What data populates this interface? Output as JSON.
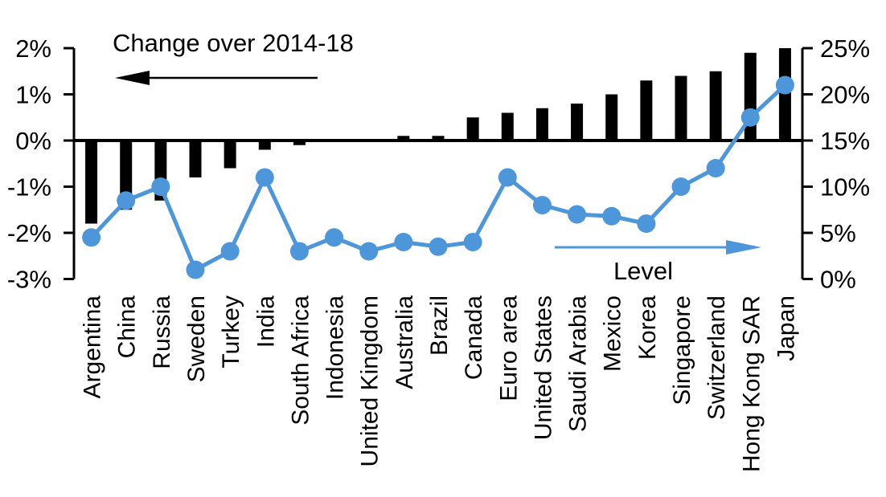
{
  "chart_data": {
    "type": "bar",
    "title": "Change over 2014-18",
    "categories": [
      "Argentina",
      "China",
      "Russia",
      "Sweden",
      "Turkey",
      "India",
      "South Africa",
      "Indonesia",
      "United Kingdom",
      "Australia",
      "Brazil",
      "Canada",
      "Euro area",
      "United States",
      "Saudi Arabia",
      "Mexico",
      "Korea",
      "Singapore",
      "Switzerland",
      "Hong Kong SAR",
      "Japan"
    ],
    "series": [
      {
        "name": "Change over 2014-18",
        "type": "bar",
        "axis": "left",
        "unit": "percentage points",
        "values": [
          -1.8,
          -1.5,
          -1.3,
          -0.8,
          -0.6,
          -0.2,
          -0.1,
          0,
          0,
          0.1,
          0.1,
          0.5,
          0.6,
          0.7,
          0.8,
          1.0,
          1.3,
          1.4,
          1.5,
          1.9,
          2.0
        ]
      },
      {
        "name": "Level",
        "type": "line",
        "axis": "right",
        "unit": "%",
        "values": [
          4.5,
          8.5,
          10.0,
          1.0,
          3.0,
          11.0,
          3.0,
          4.5,
          3.0,
          4.0,
          3.5,
          4.0,
          11.0,
          8.0,
          7.0,
          6.8,
          6.0,
          10.0,
          12.0,
          17.5,
          21.0
        ]
      }
    ],
    "left_axis": {
      "range": [
        -3,
        2
      ],
      "tick_step": 1,
      "ticks": [
        "2%",
        "1%",
        "0%",
        "-1%",
        "-2%",
        "-3%"
      ]
    },
    "right_axis": {
      "range": [
        0,
        25
      ],
      "tick_step": 5,
      "ticks": [
        "25%",
        "20%",
        "15%",
        "10%",
        "5%",
        "0%"
      ]
    },
    "annotations": {
      "change_label": "Change over 2014-18",
      "level_label": "Level"
    },
    "colors": {
      "bar": "#000000",
      "line": "#4D96D9",
      "axis": "#000000"
    },
    "layout_hints": {
      "grid": "zero-line only",
      "legend": "in-plot arrows",
      "x_labels": "rotated 90"
    }
  }
}
